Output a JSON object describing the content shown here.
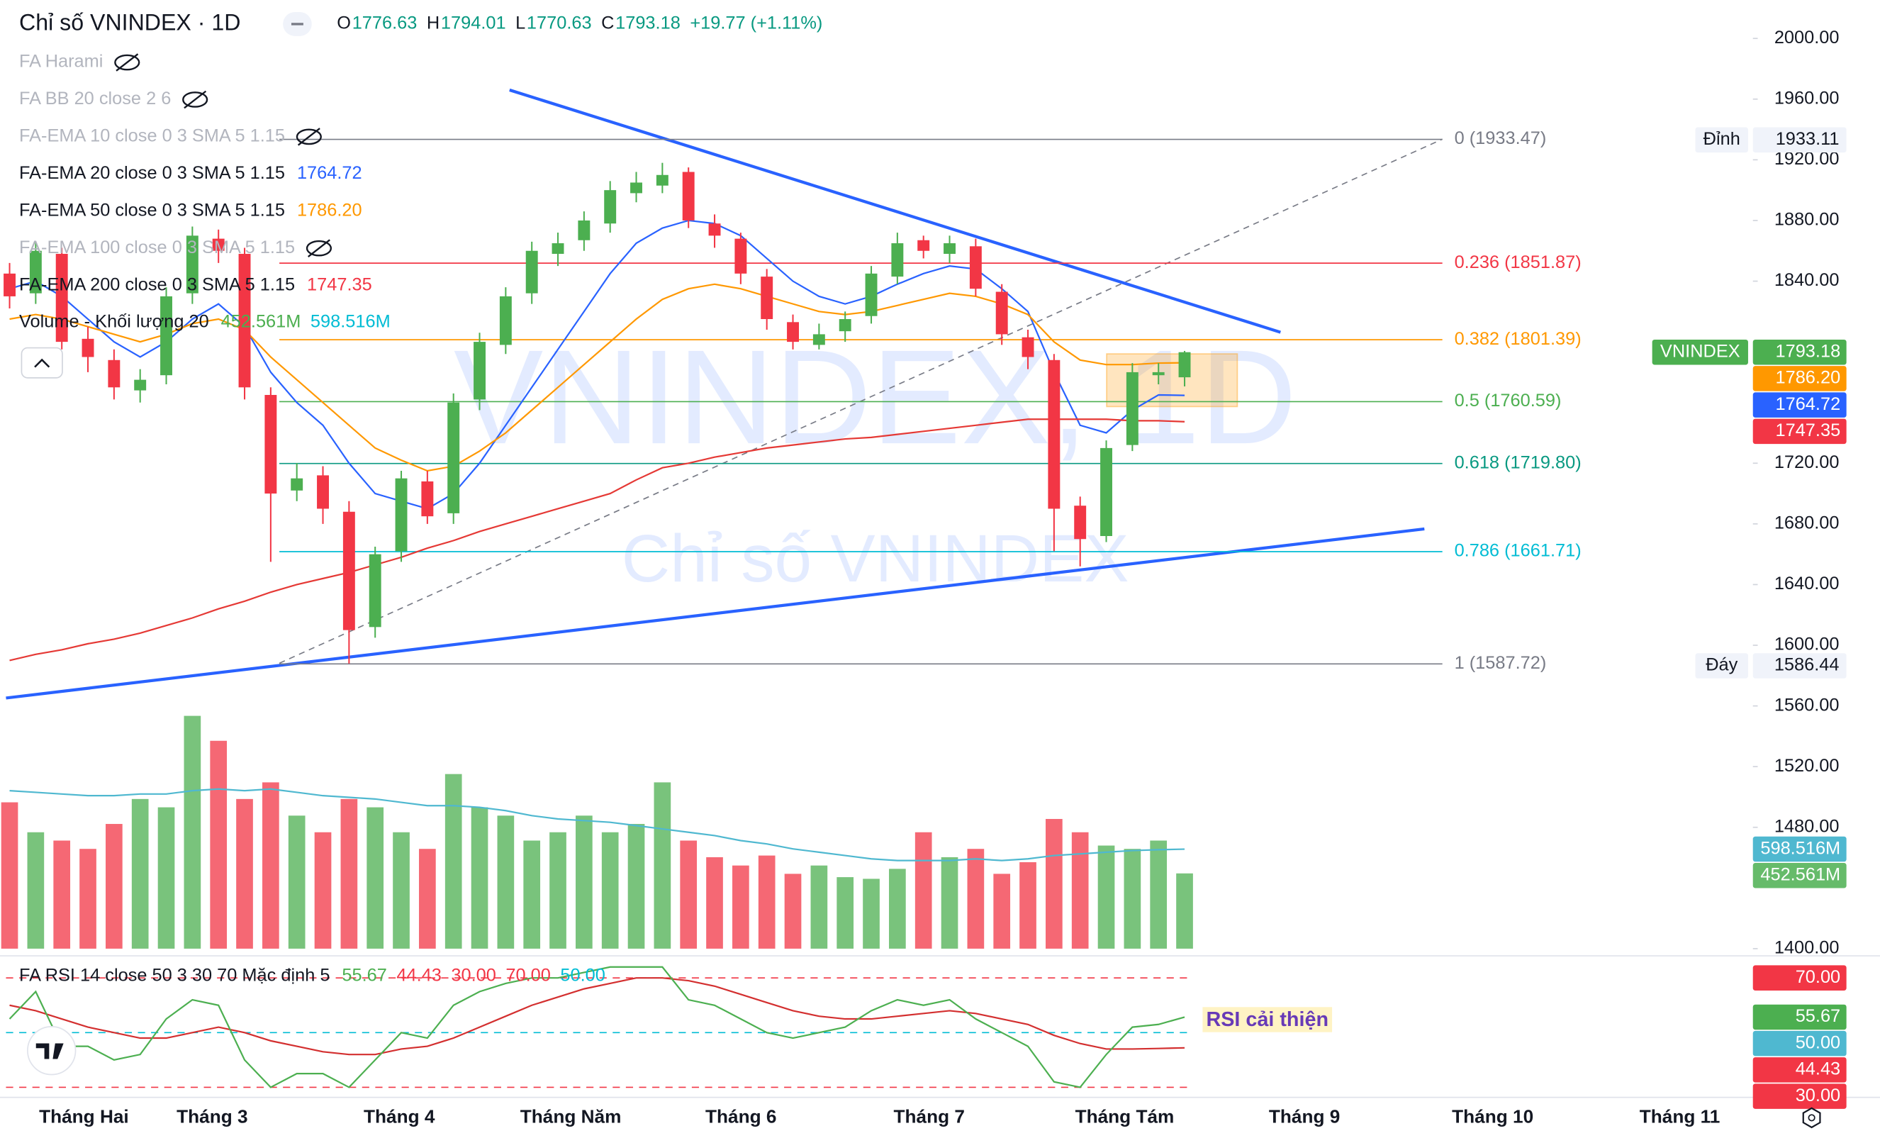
{
  "header": {
    "title": "Chỉ số VNINDEX · 1D",
    "ohlc": [
      {
        "key": "O",
        "value": "1776.63"
      },
      {
        "key": "H",
        "value": "1794.01"
      },
      {
        "key": "L",
        "value": "1770.63"
      },
      {
        "key": "C",
        "value": "1793.18"
      }
    ],
    "change": "+19.77 (+1.11%)",
    "color": "#089981"
  },
  "legend": [
    {
      "name": "FA Harami",
      "hidden": true,
      "values": []
    },
    {
      "name": "FA BB 20 close 2 6",
      "hidden": true,
      "values": []
    },
    {
      "name": "FA-EMA 10 close 0 3 SMA 5 1.15",
      "hidden": true,
      "values": []
    },
    {
      "name": "FA-EMA 20 close 0 3 SMA 5 1.15",
      "hidden": false,
      "values": [
        {
          "text": "1764.72",
          "color": "#2962ff"
        }
      ]
    },
    {
      "name": "FA-EMA 50 close 0 3 SMA 5 1.15",
      "hidden": false,
      "values": [
        {
          "text": "1786.20",
          "color": "#ff9800"
        }
      ]
    },
    {
      "name": "FA-EMA 100 close 0 3 SMA 5 1.15",
      "hidden": true,
      "values": []
    },
    {
      "name": "FA-EMA 200 close 0 3 SMA 5 1.15",
      "hidden": false,
      "values": [
        {
          "text": "1747.35",
          "color": "#f23645"
        }
      ]
    },
    {
      "name": "Volume - Khối lượng 20",
      "hidden": false,
      "values": [
        {
          "text": "452.561M",
          "color": "#4caf50"
        },
        {
          "text": "598.516M",
          "color": "#00bcd4"
        }
      ]
    }
  ],
  "rsi_legend": {
    "name": "FA RSI 14 close 50 3 30 70 Mặc định 5",
    "values": [
      {
        "text": "55.67",
        "color": "#4caf50"
      },
      {
        "text": "44.43",
        "color": "#f23645"
      },
      {
        "text": "30.00",
        "color": "#f23645"
      },
      {
        "text": "70.00",
        "color": "#f23645"
      },
      {
        "text": "50.00",
        "color": "#00bcd4"
      }
    ]
  },
  "watermark": {
    "symbol": "VNINDEX, 1D",
    "name": "Chỉ số VNINDEX"
  },
  "annotation": "RSI cải thiện",
  "time_labels": [
    "Tháng Hai",
    "Tháng 3",
    "Tháng 4",
    "Tháng Năm",
    "Tháng 6",
    "Tháng 7",
    "Tháng Tám",
    "Tháng 9",
    "Tháng 10",
    "Tháng 11"
  ],
  "chart_data": {
    "type": "candlestick",
    "up_color": "#4caf50",
    "down_color": "#f23645",
    "open": [
      1845,
      1832,
      1858,
      1802,
      1788,
      1768,
      1778,
      1832,
      1868,
      1858,
      1765,
      1702,
      1712,
      1688,
      1612,
      1662,
      1708,
      1687,
      1762,
      1798,
      1832,
      1858,
      1867,
      1878,
      1898,
      1903,
      1912,
      1878,
      1868,
      1843,
      1813,
      1798,
      1807,
      1817,
      1843,
      1867,
      1858,
      1863,
      1833,
      1803,
      1788,
      1692,
      1672,
      1732,
      1778,
      1776.63
    ],
    "high": [
      1852,
      1866,
      1862,
      1810,
      1795,
      1782,
      1836,
      1876,
      1874,
      1862,
      1770,
      1720,
      1718,
      1695,
      1665,
      1715,
      1715,
      1766,
      1806,
      1836,
      1866,
      1872,
      1886,
      1906,
      1912,
      1918,
      1915,
      1884,
      1872,
      1848,
      1818,
      1812,
      1820,
      1850,
      1872,
      1870,
      1870,
      1868,
      1838,
      1808,
      1792,
      1698,
      1735,
      1786,
      1786,
      1794.01
    ],
    "low": [
      1822,
      1825,
      1795,
      1780,
      1762,
      1760,
      1772,
      1825,
      1852,
      1762,
      1655,
      1695,
      1680,
      1588,
      1605,
      1655,
      1680,
      1680,
      1755,
      1792,
      1825,
      1850,
      1860,
      1872,
      1892,
      1898,
      1875,
      1862,
      1838,
      1808,
      1795,
      1795,
      1800,
      1812,
      1838,
      1855,
      1852,
      1830,
      1798,
      1782,
      1662,
      1652,
      1668,
      1728,
      1772,
      1770.63
    ],
    "close": [
      1830,
      1860,
      1800,
      1790,
      1770,
      1775,
      1830,
      1870,
      1860,
      1770,
      1700,
      1710,
      1690,
      1610,
      1660,
      1710,
      1685,
      1760,
      1800,
      1830,
      1860,
      1865,
      1880,
      1900,
      1905,
      1910,
      1880,
      1870,
      1845,
      1815,
      1800,
      1805,
      1815,
      1845,
      1865,
      1860,
      1865,
      1835,
      1805,
      1790,
      1690,
      1670,
      1730,
      1780,
      1780,
      1793.18
    ],
    "ylim": [
      1400,
      2000
    ],
    "yticks": [
      {
        "value": 2000,
        "label": "2000.00"
      },
      {
        "value": 1960,
        "label": "1960.00"
      },
      {
        "value": 1920,
        "label": "1920.00"
      },
      {
        "value": 1880,
        "label": "1880.00"
      },
      {
        "value": 1840,
        "label": "1840.00"
      },
      {
        "value": 1720,
        "label": "1720.00"
      },
      {
        "value": 1680,
        "label": "1680.00"
      },
      {
        "value": 1640,
        "label": "1640.00"
      },
      {
        "value": 1600,
        "label": "1600.00"
      },
      {
        "value": 1560,
        "label": "1560.00"
      },
      {
        "value": 1520,
        "label": "1520.00"
      },
      {
        "value": 1480,
        "label": "1480.00"
      },
      {
        "value": 1400,
        "label": "1400.00"
      }
    ],
    "ema": [
      {
        "color": "#2962ff",
        "values": [
          1835,
          1840,
          1830,
          1815,
          1800,
          1790,
          1800,
          1815,
          1825,
          1810,
          1780,
          1760,
          1745,
          1720,
          1700,
          1695,
          1690,
          1700,
          1720,
          1745,
          1770,
          1795,
          1820,
          1845,
          1865,
          1875,
          1880,
          1878,
          1870,
          1855,
          1840,
          1830,
          1825,
          1830,
          1838,
          1845,
          1850,
          1848,
          1835,
          1820,
          1780,
          1745,
          1740,
          1755,
          1765,
          1764.72
        ]
      },
      {
        "color": "#ff9800",
        "values": [
          1815,
          1818,
          1815,
          1810,
          1805,
          1800,
          1805,
          1812,
          1815,
          1808,
          1790,
          1775,
          1760,
          1745,
          1730,
          1722,
          1715,
          1718,
          1728,
          1740,
          1755,
          1770,
          1785,
          1800,
          1815,
          1828,
          1835,
          1838,
          1835,
          1830,
          1825,
          1820,
          1818,
          1820,
          1824,
          1828,
          1832,
          1830,
          1825,
          1818,
          1800,
          1788,
          1785,
          1785,
          1786,
          1786.2
        ]
      },
      {
        "color": "#e53935",
        "values": [
          1590,
          1594,
          1597,
          1601,
          1604,
          1608,
          1613,
          1618,
          1624,
          1629,
          1635,
          1640,
          1644,
          1648,
          1653,
          1658,
          1664,
          1669,
          1675,
          1680,
          1685,
          1690,
          1695,
          1700,
          1709,
          1717,
          1720,
          1724,
          1727,
          1730,
          1732,
          1734,
          1736,
          1737,
          1739,
          1741,
          1743,
          1745,
          1747,
          1749,
          1749,
          1749,
          1749,
          1748,
          1748,
          1747.35
        ]
      }
    ],
    "volume": [
      880,
      700,
      650,
      600,
      750,
      900,
      850,
      1400,
      1250,
      900,
      1000,
      800,
      700,
      900,
      850,
      700,
      600,
      1050,
      850,
      800,
      650,
      700,
      800,
      700,
      750,
      1000,
      650,
      550,
      500,
      560,
      450,
      500,
      430,
      420,
      480,
      700,
      550,
      600,
      450,
      520,
      780,
      700,
      620,
      600,
      650,
      452.561
    ],
    "volume_ma": {
      "color": "#4fb8d0",
      "values": [
        950,
        940,
        930,
        920,
        920,
        930,
        930,
        950,
        960,
        950,
        960,
        940,
        920,
        910,
        900,
        880,
        860,
        860,
        850,
        830,
        800,
        780,
        770,
        760,
        740,
        720,
        700,
        680,
        650,
        630,
        600,
        580,
        560,
        540,
        530,
        530,
        530,
        540,
        530,
        540,
        560,
        570,
        580,
        590,
        595,
        598.516
      ]
    },
    "volume_ylim": [
      0,
      1500
    ],
    "rsi": {
      "color": "#4caf50",
      "values": [
        55,
        65,
        45,
        45,
        40,
        42,
        55,
        62,
        60,
        40,
        30,
        35,
        35,
        30,
        40,
        50,
        48,
        60,
        65,
        68,
        70,
        70,
        72,
        74,
        74,
        74,
        62,
        60,
        55,
        50,
        48,
        50,
        52,
        58,
        62,
        60,
        62,
        55,
        50,
        45,
        32,
        30,
        42,
        52,
        53,
        55.67
      ]
    },
    "rsi_ma": {
      "color": "#d32f2f",
      "values": [
        60,
        58,
        55,
        52,
        50,
        48,
        48,
        50,
        52,
        50,
        47,
        45,
        43,
        42,
        42,
        44,
        45,
        48,
        52,
        56,
        60,
        63,
        66,
        68,
        70,
        70,
        69,
        67,
        64,
        61,
        58,
        56,
        55,
        55,
        56,
        57,
        58,
        57,
        55,
        53,
        49,
        46,
        44,
        44,
        44.2,
        44.43
      ]
    },
    "rsi_ylim": [
      25,
      75
    ],
    "rsi_levels": [
      {
        "value": 70,
        "color": "#f23645"
      },
      {
        "value": 50,
        "color": "#00bcd4"
      },
      {
        "value": 30,
        "color": "#f23645"
      }
    ],
    "fib_levels": [
      {
        "value": 1933.47,
        "label": "0 (1933.47)",
        "color": "#787b86"
      },
      {
        "value": 1851.87,
        "label": "0.236 (1851.87)",
        "color": "#f23645"
      },
      {
        "value": 1801.39,
        "label": "0.382 (1801.39)",
        "color": "#ff9800"
      },
      {
        "value": 1760.59,
        "label": "0.5 (1760.59)",
        "color": "#4caf50"
      },
      {
        "value": 1719.8,
        "label": "0.618 (1719.80)",
        "color": "#089981"
      },
      {
        "value": 1661.71,
        "label": "0.786 (1661.71)",
        "color": "#00bcd4"
      },
      {
        "value": 1587.72,
        "label": "1 (1587.72)",
        "color": "#787b86"
      }
    ],
    "extremes": [
      {
        "tag": "Đỉnh",
        "value": 1933.11,
        "label": "1933.11"
      },
      {
        "tag": "Đáy",
        "value": 1586.44,
        "label": "1586.44"
      }
    ],
    "price_badges": [
      {
        "tag": "VNINDEX",
        "value": 1793.18,
        "label": "1793.18",
        "color": "#4caf50"
      },
      {
        "value": 1786.2,
        "label": "1786.20",
        "color": "#ff9800"
      },
      {
        "value": 1764.72,
        "label": "1764.72",
        "color": "#2962ff"
      },
      {
        "value": 1747.35,
        "label": "1747.35",
        "color": "#f23645"
      }
    ],
    "volume_badges": [
      {
        "value": 598.516,
        "label": "598.516M",
        "color": "#4fb8d0"
      },
      {
        "value": 452.561,
        "label": "452.561M",
        "color": "#66bb6a"
      }
    ],
    "rsi_badges": [
      {
        "value": 70,
        "label": "70.00",
        "color": "#f23645"
      },
      {
        "value": 55.67,
        "label": "55.67",
        "color": "#4caf50"
      },
      {
        "value": 50,
        "label": "50.00",
        "color": "#4fb8d0"
      },
      {
        "value": 44.43,
        "label": "44.43",
        "color": "#f23645"
      },
      {
        "value": 30,
        "label": "30.00",
        "color": "#f23645"
      }
    ]
  }
}
